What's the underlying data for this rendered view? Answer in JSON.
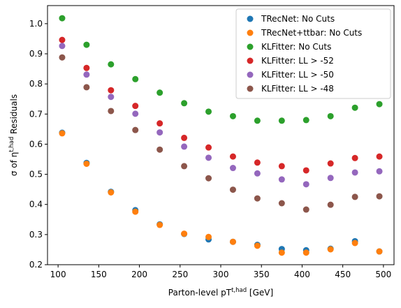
{
  "chart_data": {
    "type": "scatter",
    "xlabel": "Parton-level p_T^{t,had} [GeV]",
    "ylabel": "σ of η^{t,had} Residuals",
    "xlim": [
      87,
      513
    ],
    "ylim": [
      0.2,
      1.06
    ],
    "x_ticks": [
      100,
      150,
      200,
      250,
      300,
      350,
      400,
      450,
      500
    ],
    "y_ticks": [
      0.2,
      0.3,
      0.4,
      0.5,
      0.6,
      0.7,
      0.8,
      0.9,
      1.0
    ],
    "grid": false,
    "legend_position": "top-right",
    "series": [
      {
        "name": "TRecNet: No Cuts",
        "color": "#1f77b4",
        "x": [
          105,
          135,
          165,
          195,
          225,
          255,
          285,
          315,
          345,
          375,
          405,
          435,
          465,
          495
        ],
        "y": [
          0.638,
          0.538,
          0.442,
          0.381,
          0.334,
          0.302,
          0.284,
          0.276,
          0.266,
          0.252,
          0.248,
          0.253,
          0.278,
          0.244
        ]
      },
      {
        "name": "TRecNet+ttbar: No Cuts",
        "color": "#ff7f0e",
        "x": [
          105,
          135,
          165,
          195,
          225,
          255,
          285,
          315,
          345,
          375,
          405,
          435,
          465,
          495
        ],
        "y": [
          0.636,
          0.535,
          0.44,
          0.376,
          0.332,
          0.303,
          0.292,
          0.276,
          0.263,
          0.24,
          0.24,
          0.251,
          0.272,
          0.244
        ]
      },
      {
        "name": "KLFitter: No Cuts",
        "color": "#2ca02c",
        "x": [
          105,
          135,
          165,
          195,
          225,
          255,
          285,
          315,
          345,
          375,
          405,
          435,
          465,
          495
        ],
        "y": [
          1.018,
          0.93,
          0.865,
          0.816,
          0.771,
          0.736,
          0.708,
          0.693,
          0.678,
          0.678,
          0.68,
          0.693,
          0.721,
          0.733
        ]
      },
      {
        "name": "KLFitter: LL > -52",
        "color": "#d62728",
        "x": [
          105,
          135,
          165,
          195,
          225,
          255,
          285,
          315,
          345,
          375,
          405,
          435,
          465,
          495
        ],
        "y": [
          0.946,
          0.853,
          0.779,
          0.727,
          0.669,
          0.621,
          0.589,
          0.559,
          0.539,
          0.527,
          0.513,
          0.536,
          0.554,
          0.559
        ]
      },
      {
        "name": "KLFitter: LL > -50",
        "color": "#9467bd",
        "x": [
          105,
          135,
          165,
          195,
          225,
          255,
          285,
          315,
          345,
          375,
          405,
          435,
          465,
          495
        ],
        "y": [
          0.926,
          0.831,
          0.757,
          0.701,
          0.639,
          0.592,
          0.555,
          0.521,
          0.503,
          0.483,
          0.467,
          0.488,
          0.506,
          0.51
        ]
      },
      {
        "name": "KLFitter: LL > -48",
        "color": "#8c564b",
        "x": [
          105,
          135,
          165,
          195,
          225,
          255,
          285,
          315,
          345,
          375,
          405,
          435,
          465,
          495
        ],
        "y": [
          0.888,
          0.789,
          0.71,
          0.647,
          0.582,
          0.527,
          0.487,
          0.449,
          0.42,
          0.404,
          0.383,
          0.399,
          0.425,
          0.427
        ]
      }
    ]
  }
}
